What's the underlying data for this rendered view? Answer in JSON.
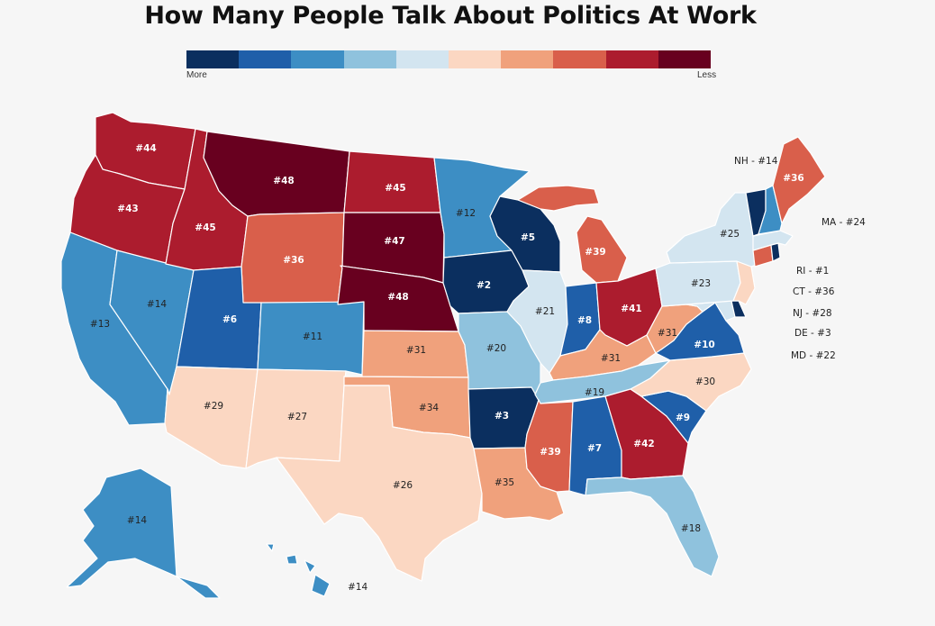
{
  "title": "How Many People Talk About Politics At Work",
  "legend": {
    "more": "More",
    "less": "Less",
    "colors": [
      "#0b2f5f",
      "#1f5fa9",
      "#3d8ec4",
      "#8fc2dd",
      "#d3e5f0",
      "#fbd7c2",
      "#f0a17c",
      "#d95f4b",
      "#ac1c2e",
      "#68001f"
    ]
  },
  "states": {
    "WA": {
      "label": "#44",
      "color": "#ac1c2e"
    },
    "OR": {
      "label": "#43",
      "color": "#ac1c2e"
    },
    "CA": {
      "label": "#13",
      "color": "#3d8ec4"
    },
    "NV": {
      "label": "#14",
      "color": "#3d8ec4"
    },
    "ID": {
      "label": "#45",
      "color": "#ac1c2e"
    },
    "MT": {
      "label": "#48",
      "color": "#68001f"
    },
    "WY": {
      "label": "#36",
      "color": "#d95f4b"
    },
    "UT": {
      "label": "#6",
      "color": "#1f5fa9"
    },
    "AZ": {
      "label": "#29",
      "color": "#fbd7c2"
    },
    "CO": {
      "label": "#11",
      "color": "#3d8ec4"
    },
    "NM": {
      "label": "#27",
      "color": "#fbd7c2"
    },
    "ND": {
      "label": "#45",
      "color": "#ac1c2e"
    },
    "SD": {
      "label": "#47",
      "color": "#68001f"
    },
    "NE": {
      "label": "#48",
      "color": "#68001f"
    },
    "KS": {
      "label": "#31",
      "color": "#f0a17c"
    },
    "OK": {
      "label": "#34",
      "color": "#f0a17c"
    },
    "TX": {
      "label": "#26",
      "color": "#fbd7c2"
    },
    "MN": {
      "label": "#12",
      "color": "#3d8ec4"
    },
    "IA": {
      "label": "#2",
      "color": "#0b2f5f"
    },
    "MO": {
      "label": "#20",
      "color": "#8fc2dd"
    },
    "AR": {
      "label": "#3",
      "color": "#0b2f5f"
    },
    "LA": {
      "label": "#35",
      "color": "#f0a17c"
    },
    "WI": {
      "label": "#5",
      "color": "#0b2f5f"
    },
    "IL": {
      "label": "#21",
      "color": "#d3e5f0"
    },
    "MI": {
      "label": "#39",
      "color": "#d95f4b"
    },
    "IN": {
      "label": "#8",
      "color": "#1f5fa9"
    },
    "OH": {
      "label": "#41",
      "color": "#ac1c2e"
    },
    "KY": {
      "label": "#31",
      "color": "#f0a17c"
    },
    "TN": {
      "label": "#19",
      "color": "#8fc2dd"
    },
    "MS": {
      "label": "#39",
      "color": "#d95f4b"
    },
    "AL": {
      "label": "#7",
      "color": "#1f5fa9"
    },
    "GA": {
      "label": "#42",
      "color": "#ac1c2e"
    },
    "FL": {
      "label": "#18",
      "color": "#8fc2dd"
    },
    "SC": {
      "label": "#9",
      "color": "#1f5fa9"
    },
    "NC": {
      "label": "#30",
      "color": "#fbd7c2"
    },
    "VA": {
      "label": "#10",
      "color": "#1f5fa9"
    },
    "WV": {
      "label": "#31",
      "color": "#f0a17c"
    },
    "PA": {
      "label": "#23",
      "color": "#d3e5f0"
    },
    "NY": {
      "label": "#25",
      "color": "#d3e5f0"
    },
    "VT": {
      "label": "",
      "color": "#0b2f5f"
    },
    "NH": {
      "label": "NH - #14",
      "color": "#3d8ec4"
    },
    "ME": {
      "label": "#36",
      "color": "#d95f4b"
    },
    "MA": {
      "label": "MA - #24",
      "color": "#d3e5f0"
    },
    "RI": {
      "label": "RI - #1",
      "color": "#0b2f5f"
    },
    "CT": {
      "label": "CT - #36",
      "color": "#d95f4b"
    },
    "NJ": {
      "label": "NJ - #28",
      "color": "#fbd7c2"
    },
    "DE": {
      "label": "DE - #3",
      "color": "#0b2f5f"
    },
    "MD": {
      "label": "MD - #22",
      "color": "#d3e5f0"
    },
    "AK": {
      "label": "#14",
      "color": "#3d8ec4"
    },
    "HI": {
      "label": "#14",
      "color": "#3d8ec4"
    }
  }
}
